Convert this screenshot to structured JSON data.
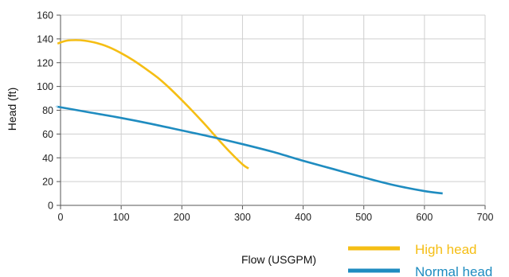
{
  "chart_data": {
    "type": "line",
    "xlabel": "Flow (USGPM)",
    "ylabel": "Head (ft)",
    "xlim": [
      0,
      700
    ],
    "ylim": [
      0,
      160
    ],
    "xticks": [
      0,
      100,
      200,
      300,
      400,
      500,
      600,
      700
    ],
    "yticks": [
      0,
      20,
      40,
      60,
      80,
      100,
      120,
      140,
      160
    ],
    "grid": true,
    "legend_position": "bottom-right",
    "series": [
      {
        "name": "High head",
        "color": "#F5BE14",
        "x": [
          -5,
          0,
          10,
          25,
          40,
          60,
          80,
          100,
          120,
          140,
          160,
          180,
          200,
          220,
          240,
          260,
          280,
          300,
          310
        ],
        "y": [
          136,
          137,
          138.5,
          139,
          138.5,
          136.5,
          133,
          128,
          122,
          115,
          107.5,
          98.5,
          88.5,
          78,
          67,
          55.5,
          44.5,
          34.5,
          31
        ]
      },
      {
        "name": "Normal head",
        "color": "#1F8CC0",
        "x": [
          -5,
          0,
          50,
          100,
          150,
          200,
          250,
          300,
          350,
          400,
          450,
          500,
          550,
          600,
          630
        ],
        "y": [
          83,
          82.5,
          78,
          73.5,
          68.5,
          63,
          57.5,
          51.5,
          45,
          37.5,
          30.5,
          23.5,
          17,
          12,
          10
        ]
      }
    ]
  }
}
